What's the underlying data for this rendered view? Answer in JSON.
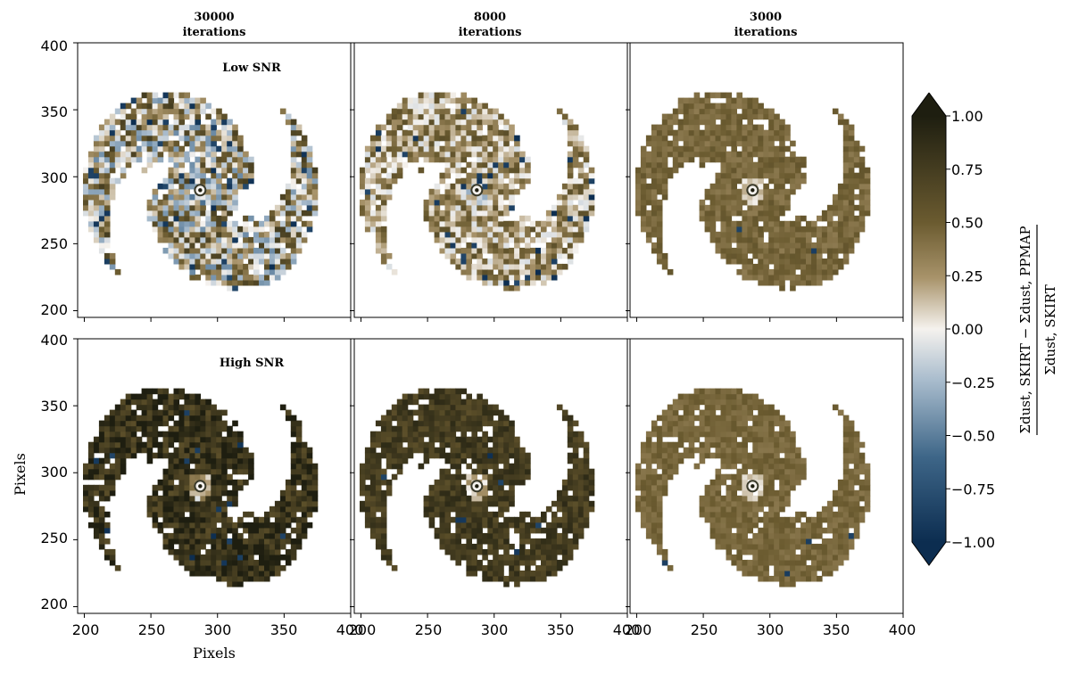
{
  "chart_data": {
    "type": "heatmap",
    "figure": "Grid of dust surface density residual maps",
    "columns": [
      {
        "title_line1": "30000",
        "title_line2": "iterations"
      },
      {
        "title_line1": "8000",
        "title_line2": "iterations"
      },
      {
        "title_line1": "3000",
        "title_line2": "iterations"
      }
    ],
    "rows": [
      {
        "label": "Low SNR",
        "mean_residual_by_column": [
          0.15,
          0.25,
          0.45
        ],
        "noise_by_column": [
          0.6,
          0.35,
          0.1
        ]
      },
      {
        "label": "High SNR",
        "mean_residual_by_column": [
          0.85,
          0.75,
          0.45
        ],
        "noise_by_column": [
          0.25,
          0.15,
          0.08
        ]
      }
    ],
    "xlabel": "Pixels",
    "ylabel": "Pixels",
    "xlim": [
      195,
      400
    ],
    "ylim": [
      195,
      400
    ],
    "xticks": [
      "200",
      "250",
      "300",
      "350",
      "400"
    ],
    "yticks": [
      "200",
      "250",
      "300",
      "350",
      "400"
    ],
    "galaxy_center": [
      287,
      290
    ],
    "colorbar": {
      "range": [
        -1.0,
        1.0
      ],
      "ticks": [
        "1.00",
        "0.75",
        "0.50",
        "0.25",
        "0.00",
        "−0.25",
        "−0.50",
        "−0.75",
        "−1.00"
      ],
      "tick_values": [
        1.0,
        0.75,
        0.5,
        0.25,
        0.0,
        -0.25,
        -0.5,
        -0.75,
        -1.0
      ],
      "label_numerator": "Σdust, SKIRT − Σdust, PPMAP",
      "label_denominator": "Σdust, SKIRT",
      "colors": {
        "pos": "#1e1e10",
        "mid_pos": "#8e7a4c",
        "zero": "#f5f2ee",
        "mid_neg": "#8fa8c0",
        "neg": "#0c2d50"
      }
    }
  }
}
